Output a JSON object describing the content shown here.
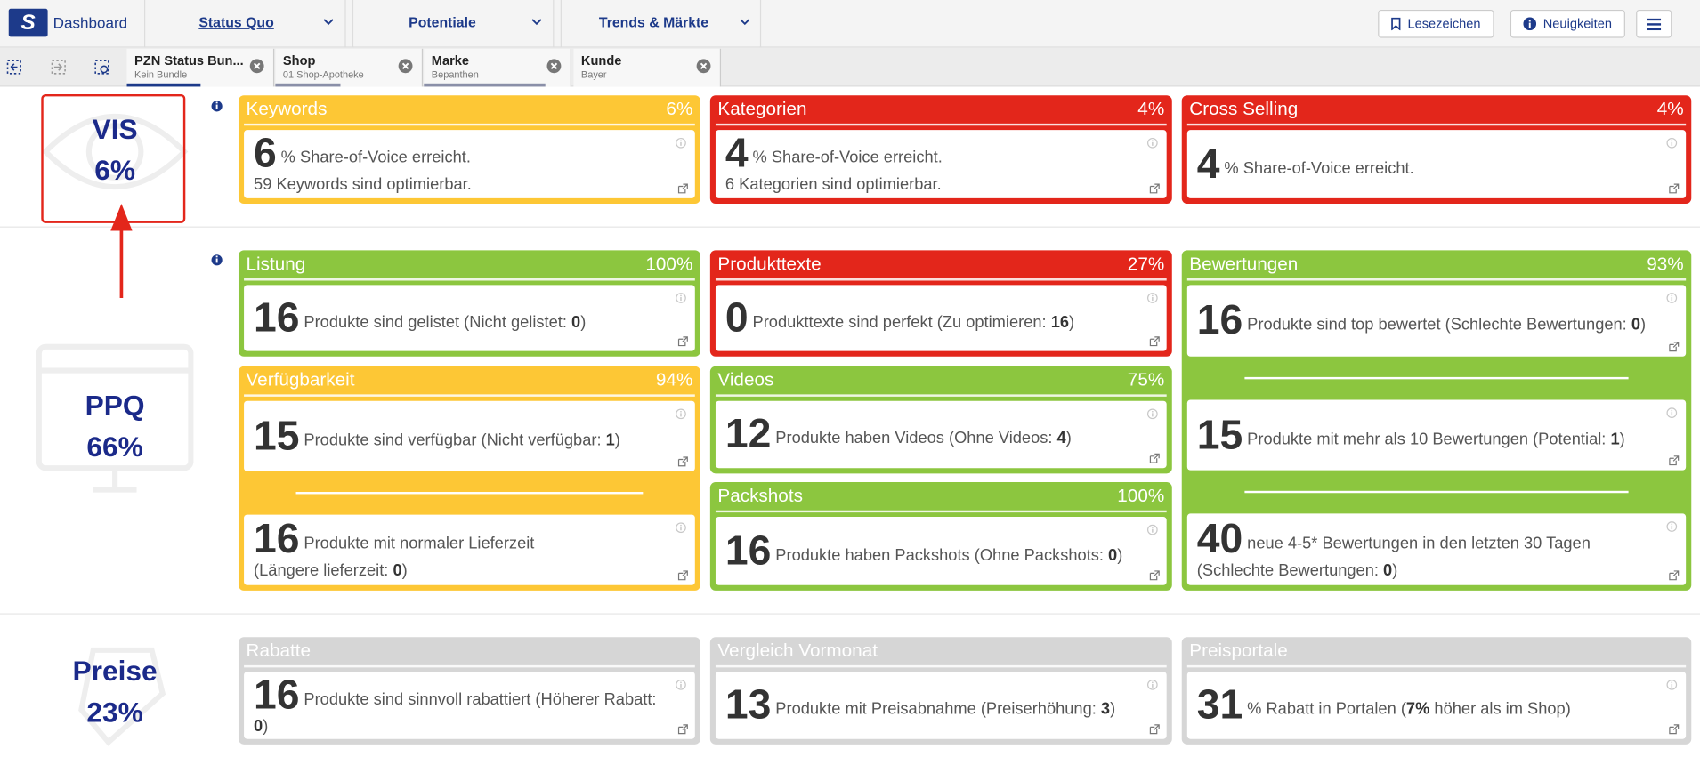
{
  "header": {
    "logo": "S",
    "app_title": "Dashboard",
    "nav": [
      "Status Quo",
      "Potentiale",
      "Trends & Märkte"
    ],
    "buttons": [
      "Lesezeichen",
      "Neuigkeiten"
    ]
  },
  "tabs": [
    {
      "title": "PZN Status Bun...",
      "subtitle": "Kein Bundle"
    },
    {
      "title": "Shop",
      "subtitle": "01 Shop-Apotheke"
    },
    {
      "title": "Marke",
      "subtitle": "Bepanthen"
    },
    {
      "title": "Kunde",
      "subtitle": "Bayer"
    }
  ],
  "sections": [
    {
      "label": "VIS",
      "value": "6%",
      "cards": [
        {
          "title": "Keywords",
          "percent": "6%",
          "color": "#fdc735",
          "items": [
            {
              "number": "6",
              "lines": [
                [
                  "% Share-of-Voice erreicht."
                ],
                [
                  "59 Keywords sind optimierbar."
                ]
              ]
            }
          ]
        },
        {
          "title": "Kategorien",
          "percent": "4%",
          "color": "#e3261b",
          "items": [
            {
              "number": "4",
              "lines": [
                [
                  "% Share-of-Voice erreicht."
                ],
                [
                  "6 Kategorien sind optimierbar."
                ]
              ]
            }
          ]
        },
        {
          "title": "Cross Selling",
          "percent": "4%",
          "color": "#e3261b",
          "items": [
            {
              "number": "4",
              "lines": [
                [
                  "% Share-of-Voice erreicht."
                ]
              ]
            }
          ]
        }
      ]
    },
    {
      "label": "PPQ",
      "value": "66%",
      "cards": [
        {
          "title": "Listung",
          "percent": "100%",
          "color": "#8cc63f",
          "items": [
            {
              "number": "16",
              "lines": [
                [
                  "Produkte sind gelistet (Nicht gelistet: ",
                  "0",
                  ")"
                ]
              ]
            }
          ]
        },
        {
          "title": "Verfügbarkeit",
          "percent": "94%",
          "color": "#fdc735",
          "items": [
            {
              "number": "15",
              "lines": [
                [
                  "Produkte sind verfügbar (Nicht verfügbar: ",
                  "1",
                  ")"
                ]
              ]
            },
            {
              "number": "16",
              "lines": [
                [
                  "Produkte mit normaler Lieferzeit"
                ],
                [
                  "(Längere lieferzeit: ",
                  "0",
                  ")"
                ]
              ]
            }
          ]
        },
        {
          "title": "Produkttexte",
          "percent": "27%",
          "color": "#e3261b",
          "items": [
            {
              "number": "0",
              "lines": [
                [
                  "Produkttexte sind perfekt (Zu optimieren: ",
                  "16",
                  ")"
                ]
              ]
            }
          ]
        },
        {
          "title": "Videos",
          "percent": "75%",
          "color": "#8cc63f",
          "items": [
            {
              "number": "12",
              "lines": [
                [
                  "Produkte haben Videos (Ohne Videos: ",
                  "4",
                  ")"
                ]
              ]
            }
          ]
        },
        {
          "title": "Packshots",
          "percent": "100%",
          "color": "#8cc63f",
          "items": [
            {
              "number": "16",
              "lines": [
                [
                  "Produkte haben Packshots (Ohne Packshots: ",
                  "0",
                  ")"
                ]
              ]
            }
          ]
        },
        {
          "title": "Bewertungen",
          "percent": "93%",
          "color": "#8cc63f",
          "items": [
            {
              "number": "16",
              "lines": [
                [
                  "Produkte sind top bewertet (Schlechte Bewertungen: ",
                  "0",
                  ")"
                ]
              ]
            },
            {
              "number": "15",
              "lines": [
                [
                  "Produkte mit mehr als 10 Bewertungen (Potential: ",
                  "1",
                  ")"
                ]
              ]
            },
            {
              "number": "40",
              "lines": [
                [
                  "neue 4-5* Bewertungen in den letzten 30 Tagen"
                ],
                [
                  "(Schlechte Bewertungen: ",
                  "0",
                  ")"
                ]
              ]
            }
          ]
        }
      ]
    },
    {
      "label": "Preise",
      "value": "23%",
      "cards": [
        {
          "title": "Rabatte",
          "color": "#d6d6d6",
          "items": [
            {
              "number": "16",
              "lines": [
                [
                  "Produkte sind sinnvoll rabattiert (Höherer Rabatt: ",
                  "0",
                  ")"
                ]
              ]
            }
          ]
        },
        {
          "title": "Vergleich Vormonat",
          "color": "#d6d6d6",
          "items": [
            {
              "number": "13",
              "lines": [
                [
                  "Produkte mit Preisabnahme (Preiserhöhung: ",
                  "3",
                  ")"
                ]
              ]
            }
          ]
        },
        {
          "title": "Preisportale",
          "color": "#d6d6d6",
          "items": [
            {
              "number": "31",
              "lines": [
                [
                  "% Rabatt in Portalen (",
                  "7%",
                  " höher als im Shop)"
                ]
              ]
            }
          ]
        }
      ]
    }
  ]
}
